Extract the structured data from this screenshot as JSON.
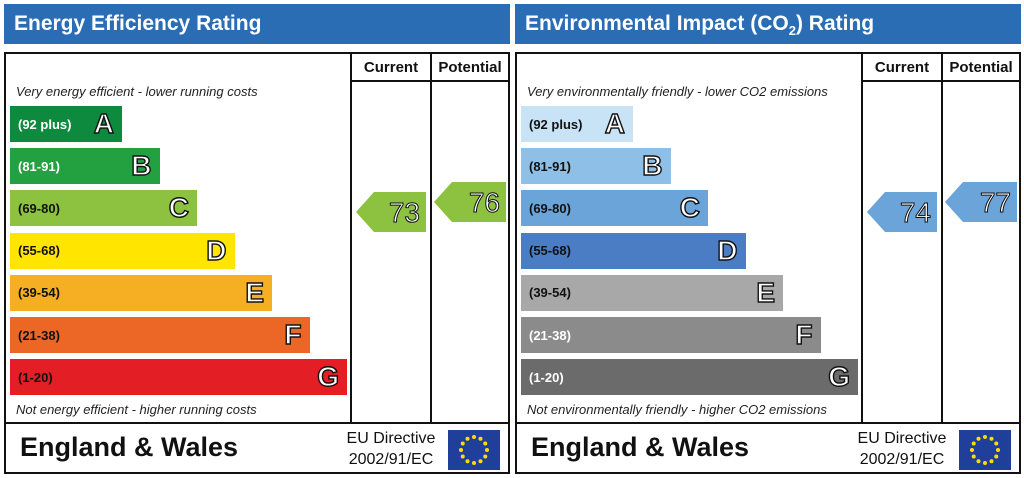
{
  "chart_data": [
    {
      "type": "bar",
      "title": "Energy Efficiency Rating",
      "columns": [
        "Current",
        "Potential"
      ],
      "top_note": "Very energy efficient - lower running costs",
      "bottom_note": "Not energy efficient - higher running costs",
      "bands": [
        {
          "range": "(92 plus)",
          "letter": "A",
          "color": "#0e8a3e",
          "text_color": "#ffffff"
        },
        {
          "range": "(81-91)",
          "letter": "B",
          "color": "#23a03f",
          "text_color": "#ffffff"
        },
        {
          "range": "(69-80)",
          "letter": "C",
          "color": "#8cc23f",
          "text_color": "#111111"
        },
        {
          "range": "(55-68)",
          "letter": "D",
          "color": "#ffe500",
          "text_color": "#111111"
        },
        {
          "range": "(39-54)",
          "letter": "E",
          "color": "#f6ae22",
          "text_color": "#111111"
        },
        {
          "range": "(21-38)",
          "letter": "F",
          "color": "#ec6625",
          "text_color": "#111111"
        },
        {
          "range": "(1-20)",
          "letter": "G",
          "color": "#e31e25",
          "text_color": "#111111"
        }
      ],
      "current": {
        "value": "73",
        "band": "C",
        "color": "#8cc23f"
      },
      "potential": {
        "value": "76",
        "band": "C",
        "color": "#8cc23f"
      },
      "footer": {
        "region": "England & Wales",
        "directive_line1": "EU Directive",
        "directive_line2": "2002/91/EC"
      }
    },
    {
      "type": "bar",
      "title": "Environmental Impact (CO",
      "title_sub": "2",
      "title_end": ") Rating",
      "columns": [
        "Current",
        "Potential"
      ],
      "top_note": "Very environmentally friendly - lower CO2 emissions",
      "bottom_note": "Not environmentally friendly - higher CO2 emissions",
      "bands": [
        {
          "range": "(92 plus)",
          "letter": "A",
          "color": "#c8e3f5",
          "text_color": "#111111"
        },
        {
          "range": "(81-91)",
          "letter": "B",
          "color": "#8ebfe7",
          "text_color": "#111111"
        },
        {
          "range": "(69-80)",
          "letter": "C",
          "color": "#6ba4d8",
          "text_color": "#111111"
        },
        {
          "range": "(55-68)",
          "letter": "D",
          "color": "#4a7dc4",
          "text_color": "#111111"
        },
        {
          "range": "(39-54)",
          "letter": "E",
          "color": "#a8a8a8",
          "text_color": "#111111"
        },
        {
          "range": "(21-38)",
          "letter": "F",
          "color": "#8b8b8b",
          "text_color": "#ffffff"
        },
        {
          "range": "(1-20)",
          "letter": "G",
          "color": "#6b6b6b",
          "text_color": "#ffffff"
        }
      ],
      "current": {
        "value": "74",
        "band": "C",
        "color": "#6ba4d8"
      },
      "potential": {
        "value": "77",
        "band": "C",
        "color": "#6ba4d8"
      },
      "footer": {
        "region": "England & Wales",
        "directive_line1": "EU Directive",
        "directive_line2": "2002/91/EC"
      }
    }
  ]
}
